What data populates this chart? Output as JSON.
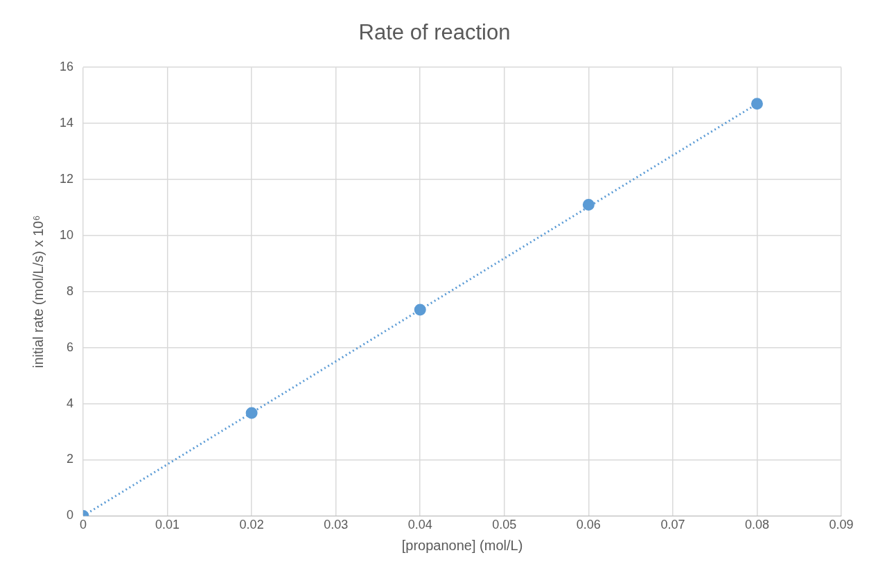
{
  "chart_data": {
    "type": "scatter",
    "title": "Rate of reaction",
    "xlabel": "[propanone] (mol/L)",
    "ylabel": "initial rate (mol/L/s) x 10⁶",
    "series": [
      {
        "type": "line",
        "x": [
          0,
          0.08
        ],
        "values": [
          0,
          14.7
        ],
        "color": "#5b9bd5",
        "line_style": "dotted",
        "marker": "none"
      },
      {
        "type": "scatter",
        "x": [
          0,
          0.02,
          0.04,
          0.06,
          0.08
        ],
        "values": [
          0,
          3.67,
          7.35,
          11.1,
          14.7
        ],
        "color": "#5b9bd5",
        "marker": "circle"
      }
    ],
    "xlim": [
      0,
      0.09
    ],
    "xticks": [
      0,
      0.01,
      0.02,
      0.03,
      0.04,
      0.05,
      0.06,
      0.07,
      0.08,
      0.09
    ],
    "ylim": [
      0,
      16
    ],
    "yticks": [
      0,
      2,
      4,
      6,
      8,
      10,
      12,
      14,
      16
    ],
    "grid": true,
    "legend": false
  }
}
